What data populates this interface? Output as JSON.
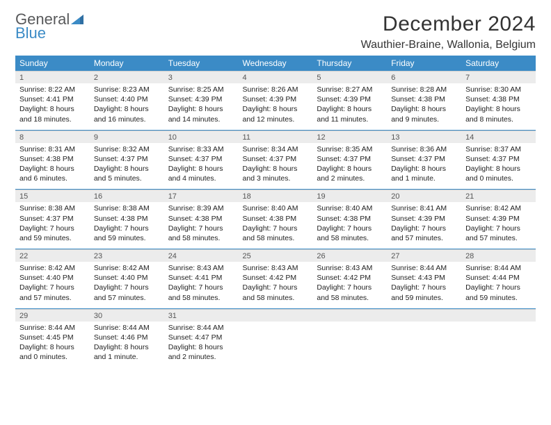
{
  "logo": {
    "part1": "General",
    "part2": "Blue"
  },
  "title": "December 2024",
  "location": "Wauthier-Braine, Wallonia, Belgium",
  "colors": {
    "primary": "#3b8bc6",
    "header_text": "#ffffff",
    "daynum_bg": "#ececec",
    "body_text": "#222222",
    "background": "#ffffff"
  },
  "day_headers": [
    "Sunday",
    "Monday",
    "Tuesday",
    "Wednesday",
    "Thursday",
    "Friday",
    "Saturday"
  ],
  "weeks": [
    [
      {
        "num": "1",
        "sunrise": "Sunrise: 8:22 AM",
        "sunset": "Sunset: 4:41 PM",
        "day1": "Daylight: 8 hours",
        "day2": "and 18 minutes."
      },
      {
        "num": "2",
        "sunrise": "Sunrise: 8:23 AM",
        "sunset": "Sunset: 4:40 PM",
        "day1": "Daylight: 8 hours",
        "day2": "and 16 minutes."
      },
      {
        "num": "3",
        "sunrise": "Sunrise: 8:25 AM",
        "sunset": "Sunset: 4:39 PM",
        "day1": "Daylight: 8 hours",
        "day2": "and 14 minutes."
      },
      {
        "num": "4",
        "sunrise": "Sunrise: 8:26 AM",
        "sunset": "Sunset: 4:39 PM",
        "day1": "Daylight: 8 hours",
        "day2": "and 12 minutes."
      },
      {
        "num": "5",
        "sunrise": "Sunrise: 8:27 AM",
        "sunset": "Sunset: 4:39 PM",
        "day1": "Daylight: 8 hours",
        "day2": "and 11 minutes."
      },
      {
        "num": "6",
        "sunrise": "Sunrise: 8:28 AM",
        "sunset": "Sunset: 4:38 PM",
        "day1": "Daylight: 8 hours",
        "day2": "and 9 minutes."
      },
      {
        "num": "7",
        "sunrise": "Sunrise: 8:30 AM",
        "sunset": "Sunset: 4:38 PM",
        "day1": "Daylight: 8 hours",
        "day2": "and 8 minutes."
      }
    ],
    [
      {
        "num": "8",
        "sunrise": "Sunrise: 8:31 AM",
        "sunset": "Sunset: 4:38 PM",
        "day1": "Daylight: 8 hours",
        "day2": "and 6 minutes."
      },
      {
        "num": "9",
        "sunrise": "Sunrise: 8:32 AM",
        "sunset": "Sunset: 4:37 PM",
        "day1": "Daylight: 8 hours",
        "day2": "and 5 minutes."
      },
      {
        "num": "10",
        "sunrise": "Sunrise: 8:33 AM",
        "sunset": "Sunset: 4:37 PM",
        "day1": "Daylight: 8 hours",
        "day2": "and 4 minutes."
      },
      {
        "num": "11",
        "sunrise": "Sunrise: 8:34 AM",
        "sunset": "Sunset: 4:37 PM",
        "day1": "Daylight: 8 hours",
        "day2": "and 3 minutes."
      },
      {
        "num": "12",
        "sunrise": "Sunrise: 8:35 AM",
        "sunset": "Sunset: 4:37 PM",
        "day1": "Daylight: 8 hours",
        "day2": "and 2 minutes."
      },
      {
        "num": "13",
        "sunrise": "Sunrise: 8:36 AM",
        "sunset": "Sunset: 4:37 PM",
        "day1": "Daylight: 8 hours",
        "day2": "and 1 minute."
      },
      {
        "num": "14",
        "sunrise": "Sunrise: 8:37 AM",
        "sunset": "Sunset: 4:37 PM",
        "day1": "Daylight: 8 hours",
        "day2": "and 0 minutes."
      }
    ],
    [
      {
        "num": "15",
        "sunrise": "Sunrise: 8:38 AM",
        "sunset": "Sunset: 4:37 PM",
        "day1": "Daylight: 7 hours",
        "day2": "and 59 minutes."
      },
      {
        "num": "16",
        "sunrise": "Sunrise: 8:38 AM",
        "sunset": "Sunset: 4:38 PM",
        "day1": "Daylight: 7 hours",
        "day2": "and 59 minutes."
      },
      {
        "num": "17",
        "sunrise": "Sunrise: 8:39 AM",
        "sunset": "Sunset: 4:38 PM",
        "day1": "Daylight: 7 hours",
        "day2": "and 58 minutes."
      },
      {
        "num": "18",
        "sunrise": "Sunrise: 8:40 AM",
        "sunset": "Sunset: 4:38 PM",
        "day1": "Daylight: 7 hours",
        "day2": "and 58 minutes."
      },
      {
        "num": "19",
        "sunrise": "Sunrise: 8:40 AM",
        "sunset": "Sunset: 4:38 PM",
        "day1": "Daylight: 7 hours",
        "day2": "and 58 minutes."
      },
      {
        "num": "20",
        "sunrise": "Sunrise: 8:41 AM",
        "sunset": "Sunset: 4:39 PM",
        "day1": "Daylight: 7 hours",
        "day2": "and 57 minutes."
      },
      {
        "num": "21",
        "sunrise": "Sunrise: 8:42 AM",
        "sunset": "Sunset: 4:39 PM",
        "day1": "Daylight: 7 hours",
        "day2": "and 57 minutes."
      }
    ],
    [
      {
        "num": "22",
        "sunrise": "Sunrise: 8:42 AM",
        "sunset": "Sunset: 4:40 PM",
        "day1": "Daylight: 7 hours",
        "day2": "and 57 minutes."
      },
      {
        "num": "23",
        "sunrise": "Sunrise: 8:42 AM",
        "sunset": "Sunset: 4:40 PM",
        "day1": "Daylight: 7 hours",
        "day2": "and 57 minutes."
      },
      {
        "num": "24",
        "sunrise": "Sunrise: 8:43 AM",
        "sunset": "Sunset: 4:41 PM",
        "day1": "Daylight: 7 hours",
        "day2": "and 58 minutes."
      },
      {
        "num": "25",
        "sunrise": "Sunrise: 8:43 AM",
        "sunset": "Sunset: 4:42 PM",
        "day1": "Daylight: 7 hours",
        "day2": "and 58 minutes."
      },
      {
        "num": "26",
        "sunrise": "Sunrise: 8:43 AM",
        "sunset": "Sunset: 4:42 PM",
        "day1": "Daylight: 7 hours",
        "day2": "and 58 minutes."
      },
      {
        "num": "27",
        "sunrise": "Sunrise: 8:44 AM",
        "sunset": "Sunset: 4:43 PM",
        "day1": "Daylight: 7 hours",
        "day2": "and 59 minutes."
      },
      {
        "num": "28",
        "sunrise": "Sunrise: 8:44 AM",
        "sunset": "Sunset: 4:44 PM",
        "day1": "Daylight: 7 hours",
        "day2": "and 59 minutes."
      }
    ],
    [
      {
        "num": "29",
        "sunrise": "Sunrise: 8:44 AM",
        "sunset": "Sunset: 4:45 PM",
        "day1": "Daylight: 8 hours",
        "day2": "and 0 minutes."
      },
      {
        "num": "30",
        "sunrise": "Sunrise: 8:44 AM",
        "sunset": "Sunset: 4:46 PM",
        "day1": "Daylight: 8 hours",
        "day2": "and 1 minute."
      },
      {
        "num": "31",
        "sunrise": "Sunrise: 8:44 AM",
        "sunset": "Sunset: 4:47 PM",
        "day1": "Daylight: 8 hours",
        "day2": "and 2 minutes."
      },
      null,
      null,
      null,
      null
    ]
  ]
}
